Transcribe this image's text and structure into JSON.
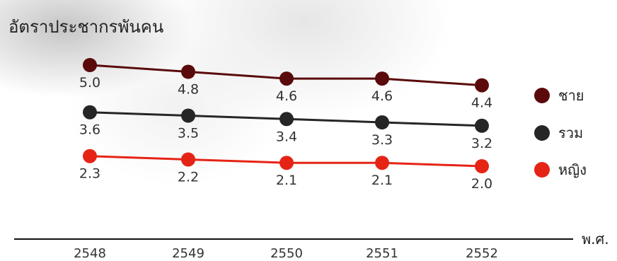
{
  "chart_data": {
    "type": "line",
    "title": "อัตราประชากรพันคน",
    "xlabel": "พ.ศ.",
    "ylabel": "",
    "categories": [
      "2548",
      "2549",
      "2550",
      "2551",
      "2552"
    ],
    "ylim": [
      1.5,
      5.5
    ],
    "grid": false,
    "legend_position": "right",
    "series": [
      {
        "name": "ชาย",
        "color": "#5a0a0a",
        "values": [
          5.0,
          4.8,
          4.6,
          4.6,
          4.4
        ],
        "labels": [
          "5.0",
          "4.8",
          "4.6",
          "4.6",
          "4.4"
        ]
      },
      {
        "name": "รวม",
        "color": "#262626",
        "values": [
          3.6,
          3.5,
          3.4,
          3.3,
          3.2
        ],
        "labels": [
          "3.6",
          "3.5",
          "3.4",
          "3.3",
          "3.2"
        ]
      },
      {
        "name": "หญิง",
        "color": "#e52416",
        "values": [
          2.3,
          2.2,
          2.1,
          2.1,
          2.0
        ],
        "labels": [
          "2.3",
          "2.2",
          "2.1",
          "2.1",
          "2.0"
        ]
      }
    ]
  }
}
